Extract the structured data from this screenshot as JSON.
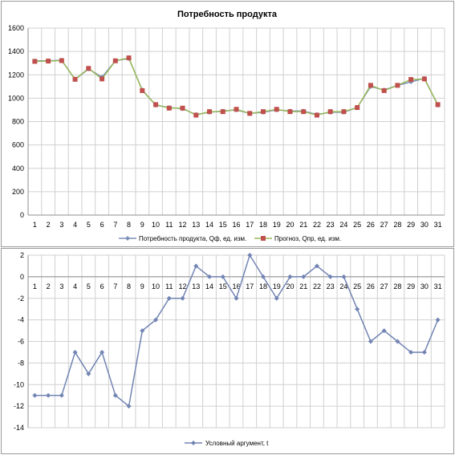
{
  "colors": {
    "grid": "#d0d0d0",
    "axis": "#8c8c8c",
    "actual": "#7b8fb8",
    "forecast": "#c0504d",
    "forecast_line": "#9bbb59",
    "arg": "#7284b3"
  },
  "chart_data": [
    {
      "type": "line",
      "title": "Потребность продукта",
      "x": [
        1,
        2,
        3,
        4,
        5,
        6,
        7,
        8,
        9,
        10,
        11,
        12,
        13,
        14,
        15,
        16,
        17,
        18,
        19,
        20,
        21,
        22,
        23,
        24,
        25,
        26,
        27,
        28,
        29,
        30,
        31
      ],
      "ylim": [
        0,
        1600
      ],
      "yticks": [
        0,
        200,
        400,
        600,
        800,
        1000,
        1200,
        1400,
        1600
      ],
      "grid": true,
      "legend_position": "bottom",
      "series": [
        {
          "name": "Потребность продукта, Qф, ед. изм.",
          "marker": "diamond",
          "values": [
            1320,
            1320,
            1325,
            1160,
            1250,
            1180,
            1320,
            1340,
            1070,
            940,
            920,
            910,
            860,
            880,
            890,
            900,
            870,
            880,
            900,
            890,
            890,
            860,
            880,
            880,
            920,
            1100,
            1070,
            1110,
            1140,
            1170,
            940
          ]
        },
        {
          "name": "Прогноз, Qпр, ед. изм.",
          "marker": "square",
          "values": [
            1315,
            1318,
            1322,
            1162,
            1255,
            1165,
            1320,
            1345,
            1065,
            945,
            915,
            915,
            855,
            885,
            885,
            905,
            870,
            885,
            905,
            885,
            885,
            855,
            885,
            885,
            920,
            1110,
            1065,
            1110,
            1160,
            1165,
            945
          ]
        }
      ]
    },
    {
      "type": "line",
      "x": [
        1,
        2,
        3,
        4,
        5,
        6,
        7,
        8,
        9,
        10,
        11,
        12,
        13,
        14,
        15,
        16,
        17,
        18,
        19,
        20,
        21,
        22,
        23,
        24,
        25,
        26,
        27,
        28,
        29,
        30,
        31
      ],
      "ylim": [
        -14,
        2
      ],
      "yticks": [
        -14,
        -12,
        -10,
        -8,
        -6,
        -4,
        -2,
        0,
        2
      ],
      "grid": true,
      "legend_position": "bottom",
      "series": [
        {
          "name": "Условный аргумент, t",
          "marker": "diamond",
          "values": [
            -11,
            -11,
            -11,
            -7,
            -9,
            -7,
            -11,
            -12,
            -5,
            -4,
            -2,
            -2,
            1,
            0,
            0,
            -2,
            2,
            0,
            -2,
            0,
            0,
            1,
            0,
            0,
            -3,
            -6,
            -5,
            -6,
            -7,
            -7,
            -4
          ]
        }
      ]
    }
  ]
}
